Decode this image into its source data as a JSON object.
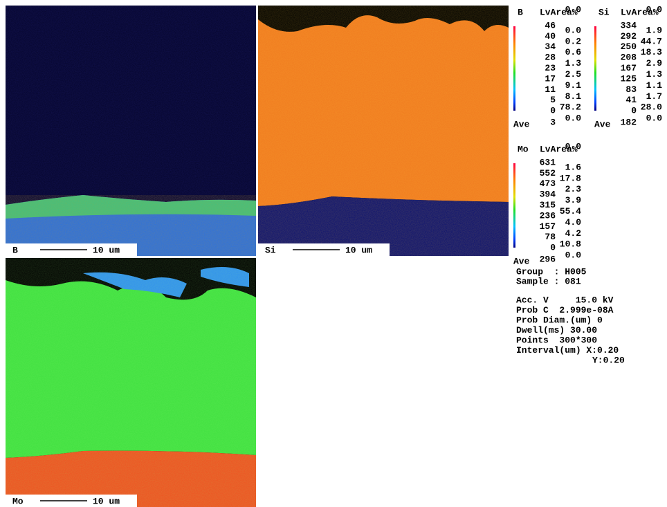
{
  "maps": [
    {
      "element": "B",
      "scale": "10 um"
    },
    {
      "element": "Si",
      "scale": "10 um"
    },
    {
      "element": "Mo",
      "scale": "10 um"
    }
  ],
  "legends": [
    {
      "element": "B",
      "header": "LvArea%",
      "levels": [
        "46",
        "40",
        "34",
        "28",
        "23",
        "17",
        "11",
        "5",
        "0"
      ],
      "areas": [
        "0.0",
        "0.0",
        "0.2",
        "0.6",
        "1.3",
        "2.5",
        "9.1",
        "8.1",
        "78.2",
        "0.0"
      ],
      "ave_label": "Ave",
      "ave": "3"
    },
    {
      "element": "Si",
      "header": "LvArea%",
      "levels": [
        "334",
        "292",
        "250",
        "208",
        "167",
        "125",
        "83",
        "41",
        "0"
      ],
      "areas": [
        "0.0",
        "1.9",
        "44.7",
        "18.3",
        "2.9",
        "1.3",
        "1.1",
        "1.7",
        "28.0",
        "0.0"
      ],
      "ave_label": "Ave",
      "ave": "182"
    },
    {
      "element": "Mo",
      "header": "LvArea%",
      "levels": [
        "631",
        "552",
        "473",
        "394",
        "315",
        "236",
        "157",
        "78",
        "0"
      ],
      "areas": [
        "0.0",
        "1.6",
        "17.8",
        "2.3",
        "3.9",
        "55.4",
        "4.0",
        "4.2",
        "10.8",
        "0.0"
      ],
      "ave_label": "Ave",
      "ave": "296"
    }
  ],
  "info": {
    "group": "Group  : H005",
    "sample": "Sample : 081",
    "conditions": [
      "Acc. V     15.0 kV",
      "Prob C  2.999e-08A",
      "Prob Diam.(um) 0",
      "Dwell(ms) 30.00",
      "Points  300*300",
      "Interval(um) X:0.20"
    ],
    "interval_y": "Y:0.20"
  }
}
